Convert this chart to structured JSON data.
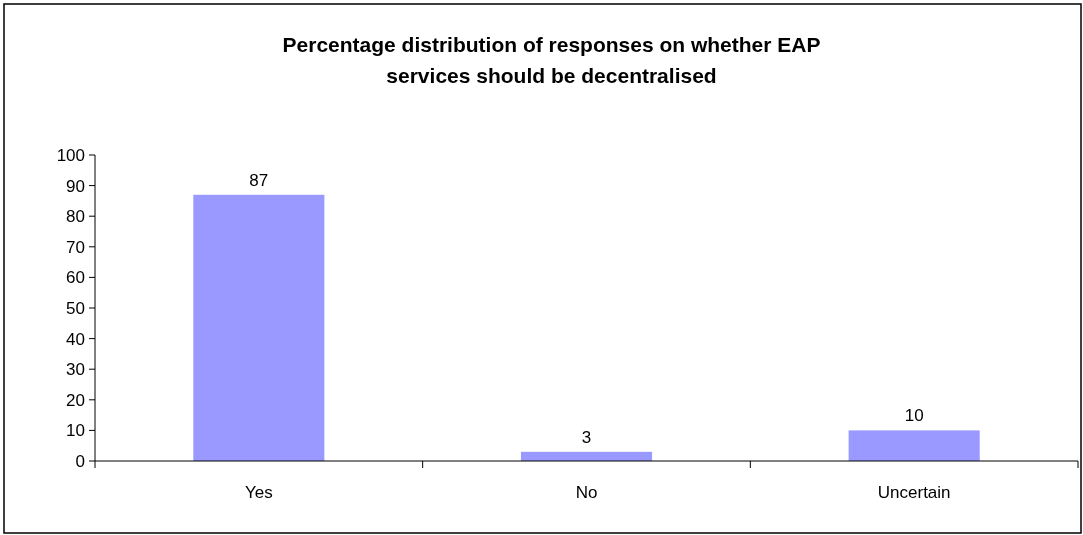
{
  "chart_data": {
    "type": "bar",
    "title": "Percentage distribution of responses on whether EAP\nservices should be decentralised",
    "categories": [
      "Yes",
      "No",
      "Uncertain"
    ],
    "values": [
      87,
      3,
      10
    ],
    "color": "#9999ff",
    "ylim": [
      0,
      100
    ],
    "yticks": [
      0,
      10,
      20,
      30,
      40,
      50,
      60,
      70,
      80,
      90,
      100
    ],
    "data_labels": true,
    "grid": false
  }
}
